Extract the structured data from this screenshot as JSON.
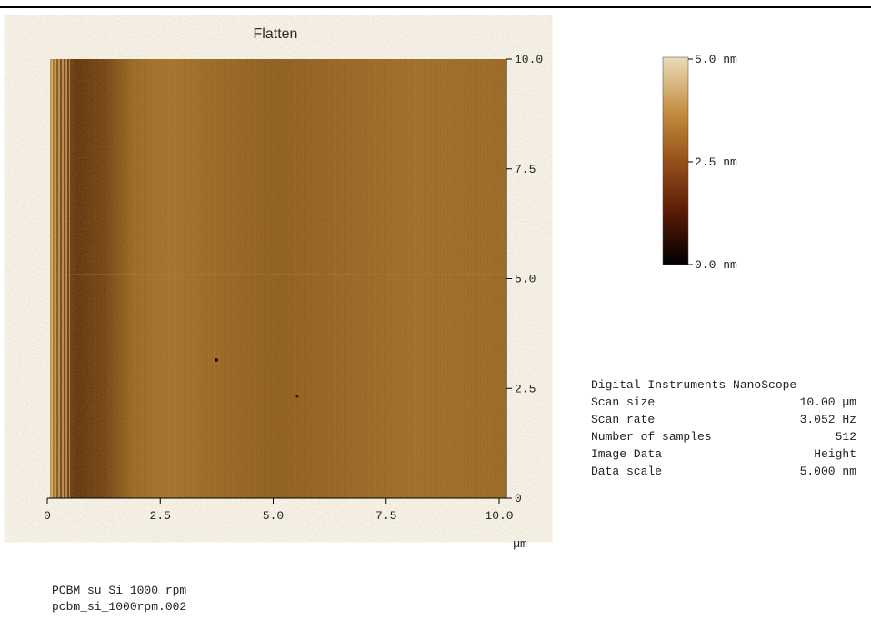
{
  "header": {
    "title": "Flatten"
  },
  "image": {
    "y_ticks": [
      "10.0",
      "7.5",
      "5.0",
      "2.5",
      "0"
    ],
    "x_ticks": [
      "0",
      "2.5",
      "5.0",
      "7.5",
      "10.0"
    ],
    "x_unit": "µm"
  },
  "colorbar": {
    "labels": [
      "5.0 nm",
      "2.5 nm",
      "0.0 nm"
    ]
  },
  "info": {
    "title": "Digital Instruments NanoScope",
    "rows": [
      [
        "Scan size",
        "10.00 µm"
      ],
      [
        "Scan rate",
        "3.052 Hz"
      ],
      [
        "Number of samples",
        "512"
      ],
      [
        "Image Data",
        "Height"
      ],
      [
        "Data scale",
        "5.000 nm"
      ]
    ]
  },
  "caption": [
    "PCBM su Si 1000 rpm",
    "pcbm_si_1000rpm.002"
  ]
}
